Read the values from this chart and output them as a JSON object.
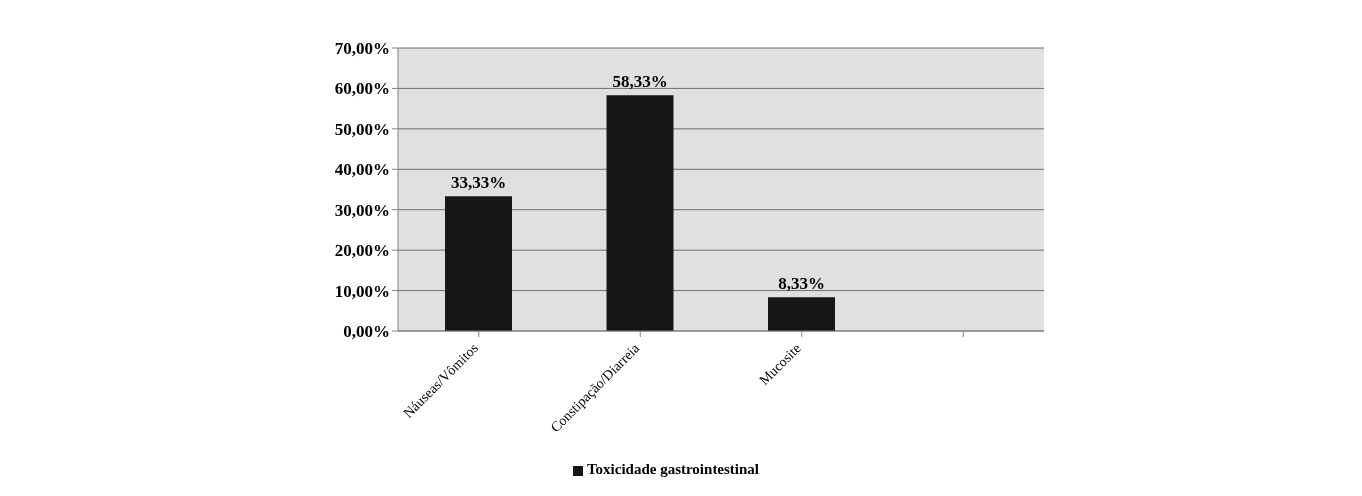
{
  "chart_data": {
    "type": "bar",
    "categories": [
      "Náuseas/Vômitos",
      "Constipação/Diarreia",
      "Mucosite",
      null
    ],
    "series": [
      {
        "name": "Toxicidade gastrointestinal",
        "color": "#161616",
        "values": [
          33.33,
          58.33,
          8.33,
          null
        ],
        "value_labels": [
          "33,33%",
          "58,33%",
          "8,33%",
          null
        ]
      }
    ],
    "ylim": [
      0,
      70
    ],
    "yticks": [
      {
        "value": 0,
        "label": "0,00%"
      },
      {
        "value": 10,
        "label": "10,00%"
      },
      {
        "value": 20,
        "label": "20,00%"
      },
      {
        "value": 30,
        "label": "30,00%"
      },
      {
        "value": 40,
        "label": "40,00%"
      },
      {
        "value": 50,
        "label": "50,00%"
      },
      {
        "value": 60,
        "label": "60,00%"
      },
      {
        "value": 70,
        "label": "70,00%"
      }
    ],
    "grid": "y",
    "legend": "bottom"
  }
}
